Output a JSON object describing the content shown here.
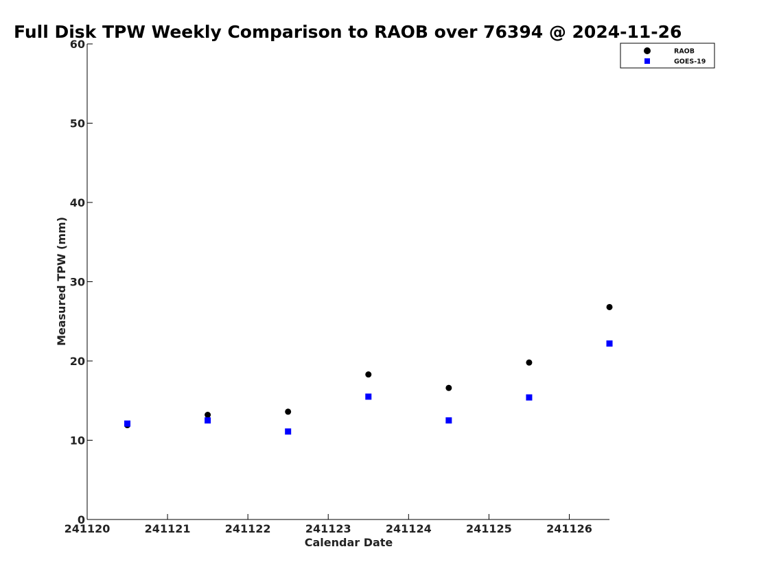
{
  "chart_data": {
    "type": "scatter",
    "title": "Full Disk TPW Weekly Comparison to RAOB over 76394 @ 2024-11-26",
    "xlabel": "Calendar Date",
    "ylabel": "Measured TPW (mm)",
    "xlim": [
      241120,
      241126.5
    ],
    "ylim": [
      0,
      60
    ],
    "xticks": [
      241120,
      241121,
      241122,
      241123,
      241124,
      241125,
      241126
    ],
    "xtick_labels": [
      "241120",
      "241121",
      "241122",
      "241123",
      "241124",
      "241125",
      "241126"
    ],
    "yticks": [
      0,
      10,
      20,
      30,
      40,
      50,
      60
    ],
    "ytick_labels": [
      "0",
      "10",
      "20",
      "30",
      "40",
      "50",
      "60"
    ],
    "grid": false,
    "legend_position": "top-right",
    "series": [
      {
        "name": "RAOB",
        "marker": "circle",
        "color": "#000000",
        "x": [
          241120.5,
          241121.5,
          241122.5,
          241123.5,
          241124.5,
          241125.5,
          241126.5
        ],
        "y": [
          11.9,
          13.2,
          13.6,
          18.3,
          16.6,
          19.8,
          26.8
        ]
      },
      {
        "name": "GOES-19",
        "marker": "square",
        "color": "#0000ff",
        "x": [
          241120.5,
          241121.5,
          241122.5,
          241123.5,
          241124.5,
          241125.5,
          241126.5
        ],
        "y": [
          12.1,
          12.5,
          11.1,
          15.5,
          12.5,
          15.4,
          22.2
        ]
      }
    ]
  }
}
